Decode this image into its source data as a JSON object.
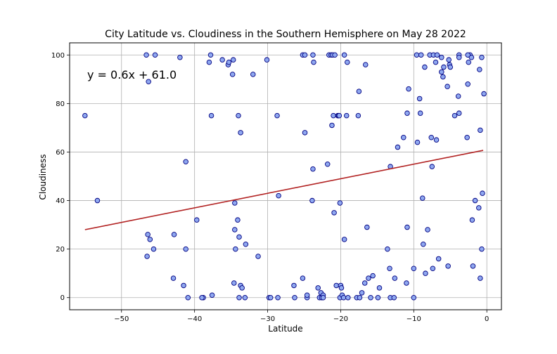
{
  "chart_data": {
    "type": "scatter",
    "title": "City Latitude vs. Cloudiness in the Southern Hemisphere on  May 28 2022",
    "xlabel": "Latitude",
    "ylabel": "Cloudiness",
    "xlim": [
      -57.1,
      2.0
    ],
    "ylim": [
      -5,
      105
    ],
    "xticks": [
      -50,
      -40,
      -30,
      -20,
      -10,
      0
    ],
    "yticks": [
      0,
      20,
      40,
      60,
      80,
      100
    ],
    "grid": true,
    "marker_fill": "#8fa8f0",
    "marker_edge": "#000080",
    "regression": {
      "equation": "y = 0.6x + 61.0",
      "slope": 0.6,
      "intercept": 61.0,
      "x_range": [
        -55.0,
        -0.5
      ],
      "color": "#b22222"
    },
    "points": [
      [
        -55.0,
        75
      ],
      [
        -53.3,
        40
      ],
      [
        -46.6,
        100
      ],
      [
        -46.3,
        89
      ],
      [
        -45.4,
        100
      ],
      [
        -46.4,
        26
      ],
      [
        -46.1,
        24
      ],
      [
        -45.6,
        20
      ],
      [
        -46.5,
        17
      ],
      [
        -42.8,
        26
      ],
      [
        -42.9,
        8
      ],
      [
        -42.0,
        99
      ],
      [
        -41.5,
        5
      ],
      [
        -41.2,
        56
      ],
      [
        -41.2,
        20
      ],
      [
        -40.9,
        0
      ],
      [
        -39.7,
        32
      ],
      [
        -38.8,
        0
      ],
      [
        -39.0,
        0
      ],
      [
        -38.0,
        97
      ],
      [
        -37.8,
        100
      ],
      [
        -37.7,
        75
      ],
      [
        -37.6,
        1
      ],
      [
        -36.2,
        98
      ],
      [
        -35.4,
        96
      ],
      [
        -35.3,
        97
      ],
      [
        -34.8,
        92
      ],
      [
        -34.7,
        98
      ],
      [
        -34.6,
        6
      ],
      [
        -34.5,
        28
      ],
      [
        -34.5,
        39
      ],
      [
        -34.4,
        20
      ],
      [
        -34.1,
        32
      ],
      [
        -34.0,
        75
      ],
      [
        -33.9,
        25
      ],
      [
        -33.7,
        68
      ],
      [
        -33.7,
        5
      ],
      [
        -33.5,
        4
      ],
      [
        -33.0,
        22
      ],
      [
        -33.1,
        0
      ],
      [
        -33.9,
        0
      ],
      [
        -32.0,
        92
      ],
      [
        -31.3,
        17
      ],
      [
        -30.1,
        98
      ],
      [
        -29.8,
        0
      ],
      [
        -29.6,
        0
      ],
      [
        -28.7,
        75
      ],
      [
        -28.5,
        42
      ],
      [
        -28.6,
        0
      ],
      [
        -26.4,
        5
      ],
      [
        -26.3,
        0
      ],
      [
        -25.2,
        100
      ],
      [
        -24.9,
        100
      ],
      [
        -24.9,
        68
      ],
      [
        -25.2,
        8
      ],
      [
        -24.6,
        0
      ],
      [
        -24.6,
        1
      ],
      [
        -23.8,
        100
      ],
      [
        -23.7,
        97
      ],
      [
        -23.8,
        53
      ],
      [
        -23.9,
        40
      ],
      [
        -23.1,
        4
      ],
      [
        -22.9,
        0
      ],
      [
        -22.6,
        0
      ],
      [
        -22.7,
        2
      ],
      [
        -22.4,
        1
      ],
      [
        -22.4,
        0
      ],
      [
        -21.8,
        55
      ],
      [
        -21.6,
        100
      ],
      [
        -21.3,
        100
      ],
      [
        -21.1,
        100
      ],
      [
        -20.8,
        100
      ],
      [
        -21.0,
        75
      ],
      [
        -21.2,
        71
      ],
      [
        -20.9,
        35
      ],
      [
        -20.6,
        5
      ],
      [
        -20.4,
        75
      ],
      [
        -20.3,
        75
      ],
      [
        -20.2,
        75
      ],
      [
        -20.1,
        39
      ],
      [
        -20.0,
        5
      ],
      [
        -19.9,
        4
      ],
      [
        -20.1,
        0
      ],
      [
        -19.8,
        1
      ],
      [
        -19.6,
        0
      ],
      [
        -19.5,
        24
      ],
      [
        -19.5,
        100
      ],
      [
        -19.1,
        97
      ],
      [
        -19.2,
        75
      ],
      [
        -19.0,
        0
      ],
      [
        -17.8,
        0
      ],
      [
        -17.5,
        85
      ],
      [
        -17.6,
        75
      ],
      [
        -17.4,
        0
      ],
      [
        -17.1,
        2
      ],
      [
        -16.7,
        6
      ],
      [
        -16.6,
        96
      ],
      [
        -16.4,
        29
      ],
      [
        -16.2,
        8
      ],
      [
        -15.9,
        0
      ],
      [
        -15.6,
        9
      ],
      [
        -14.9,
        0
      ],
      [
        -14.7,
        4
      ],
      [
        -13.6,
        20
      ],
      [
        -13.3,
        12
      ],
      [
        -13.2,
        0
      ],
      [
        -13.2,
        54
      ],
      [
        -12.7,
        0
      ],
      [
        -12.6,
        8
      ],
      [
        -12.2,
        62
      ],
      [
        -11.4,
        66
      ],
      [
        -11.0,
        6
      ],
      [
        -10.9,
        29
      ],
      [
        -10.9,
        76
      ],
      [
        -10.7,
        86
      ],
      [
        -10.0,
        0
      ],
      [
        -10.0,
        12
      ],
      [
        -9.6,
        100
      ],
      [
        -9.5,
        64
      ],
      [
        -9.2,
        82
      ],
      [
        -9.0,
        100
      ],
      [
        -9.1,
        76
      ],
      [
        -8.8,
        41
      ],
      [
        -8.7,
        22
      ],
      [
        -8.5,
        95
      ],
      [
        -8.4,
        10
      ],
      [
        -8.1,
        28
      ],
      [
        -7.8,
        100
      ],
      [
        -7.6,
        66
      ],
      [
        -7.5,
        54
      ],
      [
        -7.4,
        12
      ],
      [
        -7.3,
        100
      ],
      [
        -7.0,
        97
      ],
      [
        -6.8,
        100
      ],
      [
        -6.9,
        65
      ],
      [
        -6.6,
        16
      ],
      [
        -6.2,
        99
      ],
      [
        -6.2,
        93
      ],
      [
        -6.0,
        91
      ],
      [
        -5.9,
        95
      ],
      [
        -5.4,
        87
      ],
      [
        -5.2,
        98
      ],
      [
        -5.1,
        96
      ],
      [
        -5.0,
        95
      ],
      [
        -5.3,
        13
      ],
      [
        -4.4,
        75
      ],
      [
        -3.8,
        100
      ],
      [
        -3.8,
        99
      ],
      [
        -3.9,
        83
      ],
      [
        -3.8,
        76
      ],
      [
        -2.6,
        88
      ],
      [
        -2.7,
        66
      ],
      [
        -2.5,
        97
      ],
      [
        -2.3,
        100
      ],
      [
        -2.1,
        99
      ],
      [
        -2.0,
        32
      ],
      [
        -1.9,
        13
      ],
      [
        -1.6,
        40
      ],
      [
        -1.0,
        94
      ],
      [
        -1.1,
        37
      ],
      [
        -0.9,
        69
      ],
      [
        -0.9,
        8
      ],
      [
        -0.7,
        99
      ],
      [
        -0.7,
        20
      ],
      [
        -0.6,
        43
      ],
      [
        -0.4,
        84
      ],
      [
        -2.6,
        100
      ]
    ]
  }
}
